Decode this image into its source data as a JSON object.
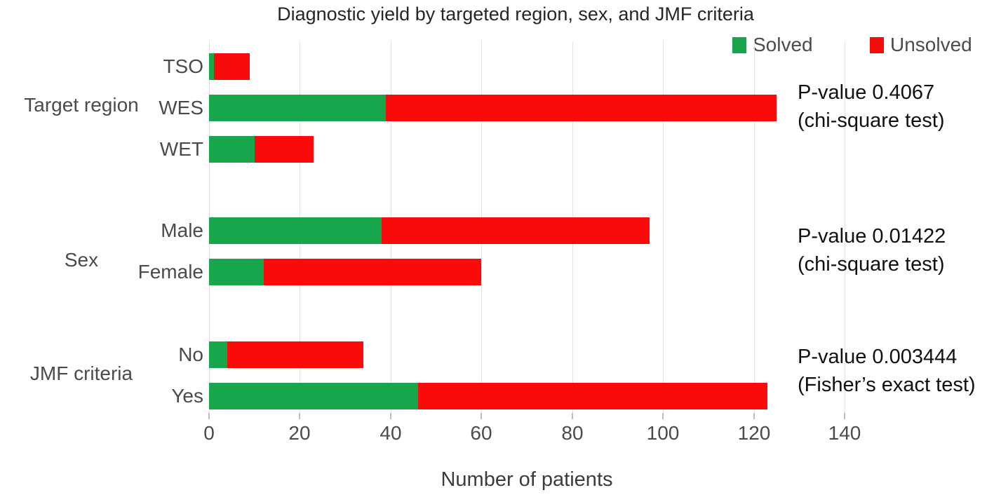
{
  "title": "Diagnostic yield by targeted region, sex, and JMF criteria",
  "legend": {
    "items": [
      {
        "label": "Solved",
        "color": "#18A64D"
      },
      {
        "label": "Unsolved",
        "color": "#FA0A0A"
      }
    ]
  },
  "colors": {
    "solved": "#18A64D",
    "unsolved": "#FA0A0A",
    "grid": "#E3E3E3",
    "tick": "#BDBDBD",
    "axis_text": "#4B4B4B",
    "title_text": "#262626"
  },
  "chart_data": {
    "type": "bar",
    "orientation": "horizontal",
    "stacked": true,
    "title": "Diagnostic yield by targeted region, sex, and JMF criteria",
    "xlabel": "Number of patients",
    "xlim": [
      0,
      140
    ],
    "xticks": [
      0,
      20,
      40,
      60,
      80,
      100,
      120,
      140
    ],
    "grid": true,
    "legend_position": "top-right",
    "series_names": [
      "Solved",
      "Unsolved"
    ],
    "groups": [
      {
        "label": "Target region",
        "annotation_lines": [
          "P-value 0.4067",
          "(chi-square test)"
        ],
        "rows": [
          {
            "category": "TSO",
            "solved": 1,
            "unsolved": 8
          },
          {
            "category": "WES",
            "solved": 39,
            "unsolved": 86
          },
          {
            "category": "WET",
            "solved": 10,
            "unsolved": 13
          }
        ]
      },
      {
        "label": "Sex",
        "annotation_lines": [
          "P-value 0.01422",
          "(chi-square test)"
        ],
        "rows": [
          {
            "category": "Male",
            "solved": 38,
            "unsolved": 59
          },
          {
            "category": "Female",
            "solved": 12,
            "unsolved": 48
          }
        ]
      },
      {
        "label": "JMF criteria",
        "annotation_lines": [
          "P-value 0.003444",
          "(Fisher’s exact test)"
        ],
        "rows": [
          {
            "category": "No",
            "solved": 4,
            "unsolved": 30
          },
          {
            "category": "Yes",
            "solved": 46,
            "unsolved": 77
          }
        ]
      }
    ]
  }
}
